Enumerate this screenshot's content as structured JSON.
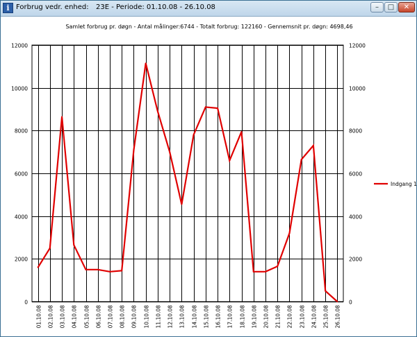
{
  "window": {
    "title_label": "Forbrug vedr. enhed:",
    "title_period": "23E - Periode: 01.10.08 - 26.10.08",
    "minimize_glyph": "–",
    "maximize_glyph": "□",
    "close_glyph": "✕",
    "app_icon": "info-icon"
  },
  "colors": {
    "series": "#e00000",
    "grid": "#000000"
  },
  "chart_data": {
    "type": "line",
    "title": "Samlet forbrug pr. døgn - Antal målinger:6744 - Totalt forbrug: 122160 - Gennemsnit pr. døgn: 4698,46",
    "categories": [
      "01.10.08",
      "02.10.08",
      "03.10.08",
      "04.10.08",
      "05.10.08",
      "06.10.08",
      "07.10.08",
      "08.10.08",
      "09.10.08",
      "10.10.08",
      "11.10.08",
      "12.10.08",
      "13.10.08",
      "14.10.08",
      "15.10.08",
      "16.10.08",
      "17.10.08",
      "18.10.08",
      "19.10.08",
      "20.10.08",
      "21.10.08",
      "22.10.08",
      "23.10.08",
      "24.10.08",
      "25.10.08",
      "26.10.08"
    ],
    "series": [
      {
        "name": "Indgang 1",
        "values": [
          1600,
          2500,
          8650,
          2650,
          1500,
          1500,
          1400,
          1450,
          7100,
          11150,
          8900,
          7000,
          4550,
          7800,
          9100,
          9050,
          6600,
          7950,
          1400,
          1400,
          1650,
          3200,
          6650,
          7300,
          500,
          0
        ]
      }
    ],
    "ylim": [
      0,
      12000
    ],
    "yticks": [
      0,
      2000,
      4000,
      6000,
      8000,
      10000,
      12000
    ],
    "secondary_y_axis": true,
    "grid": true,
    "legend_position": "right",
    "xlabel": "",
    "ylabel": ""
  }
}
